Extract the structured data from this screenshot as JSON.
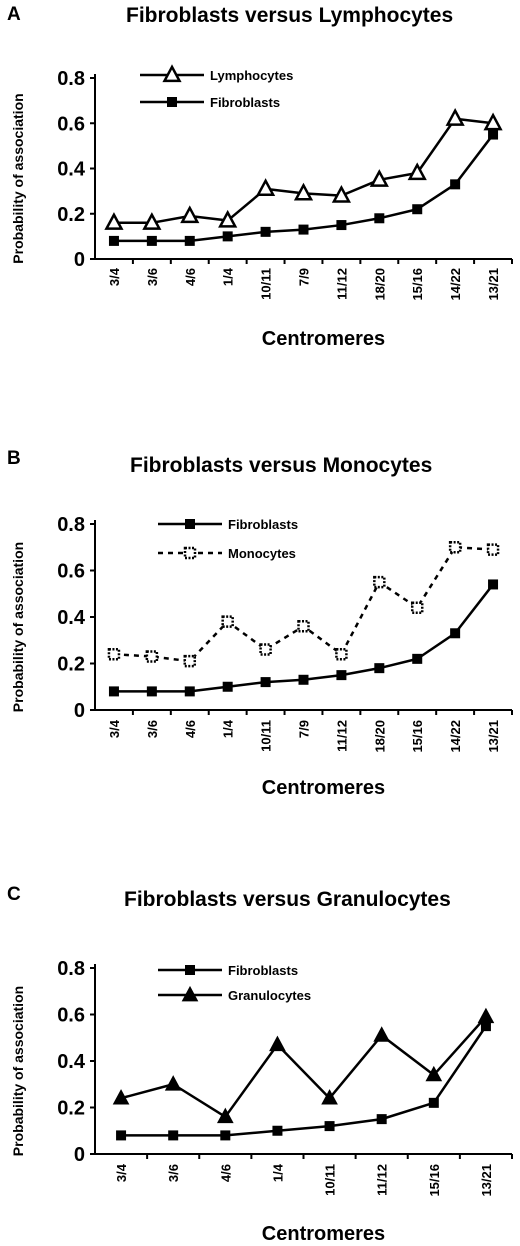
{
  "panels": [
    {
      "letter": "A",
      "title": "Fibroblasts versus Lymphocytes",
      "chart_data": {
        "type": "line",
        "title": "Fibroblasts versus Lymphocytes",
        "xlabel": "Centromeres",
        "ylabel": "Probability of association",
        "ylim": [
          0,
          0.8
        ],
        "yticks": [
          "0",
          "0.2",
          "0.4",
          "0.6",
          "0.8"
        ],
        "grid": false,
        "legend": "top-left",
        "categories": [
          "3/4",
          "3/6",
          "4/6",
          "1/4",
          "10/11",
          "7/9",
          "11/12",
          "18/20",
          "15/16",
          "14/22",
          "13/21"
        ],
        "series": [
          {
            "name": "Lymphocytes",
            "marker": "triangle-open",
            "line": "solid",
            "values": [
              0.16,
              0.16,
              0.19,
              0.17,
              0.31,
              0.29,
              0.28,
              0.35,
              0.38,
              0.62,
              0.6
            ]
          },
          {
            "name": "Fibroblasts",
            "marker": "square-filled",
            "line": "solid",
            "values": [
              0.08,
              0.08,
              0.08,
              0.1,
              0.12,
              0.13,
              0.15,
              0.18,
              0.22,
              0.33,
              0.55
            ]
          }
        ]
      }
    },
    {
      "letter": "B",
      "title": "Fibroblasts versus Monocytes",
      "chart_data": {
        "type": "line",
        "title": "Fibroblasts versus Monocytes",
        "xlabel": "Centromeres",
        "ylabel": "Probability of association",
        "ylim": [
          0,
          0.8
        ],
        "yticks": [
          "0",
          "0.2",
          "0.4",
          "0.6",
          "0.8"
        ],
        "grid": false,
        "legend": "top-left",
        "categories": [
          "3/4",
          "3/6",
          "4/6",
          "1/4",
          "10/11",
          "7/9",
          "11/12",
          "18/20",
          "15/16",
          "14/22",
          "13/21"
        ],
        "series": [
          {
            "name": "Fibroblasts",
            "marker": "square-filled",
            "line": "solid",
            "values": [
              0.08,
              0.08,
              0.08,
              0.1,
              0.12,
              0.13,
              0.15,
              0.18,
              0.22,
              0.33,
              0.54
            ]
          },
          {
            "name": "Monocytes",
            "marker": "square-dotted",
            "line": "dashed",
            "values": [
              0.24,
              0.23,
              0.21,
              0.38,
              0.26,
              0.36,
              0.24,
              0.55,
              0.44,
              0.7,
              0.69
            ]
          }
        ]
      }
    },
    {
      "letter": "C",
      "title": "Fibroblasts versus Granulocytes",
      "chart_data": {
        "type": "line",
        "title": "Fibroblasts versus Granulocytes",
        "xlabel": "Centromeres",
        "ylabel": "Probability of association",
        "ylim": [
          0,
          0.8
        ],
        "yticks": [
          "0",
          "0.2",
          "0.4",
          "0.6",
          "0.8"
        ],
        "grid": false,
        "legend": "top-left",
        "categories": [
          "3/4",
          "3/6",
          "4/6",
          "1/4",
          "10/11",
          "11/12",
          "15/16",
          "13/21"
        ],
        "series": [
          {
            "name": "Fibroblasts",
            "marker": "square-filled",
            "line": "solid",
            "values": [
              0.08,
              0.08,
              0.08,
              0.1,
              0.12,
              0.15,
              0.22,
              0.55
            ]
          },
          {
            "name": "Granulocytes",
            "marker": "triangle-filled",
            "line": "solid",
            "values": [
              0.24,
              0.3,
              0.16,
              0.47,
              0.24,
              0.51,
              0.34,
              0.59
            ]
          }
        ]
      }
    }
  ]
}
